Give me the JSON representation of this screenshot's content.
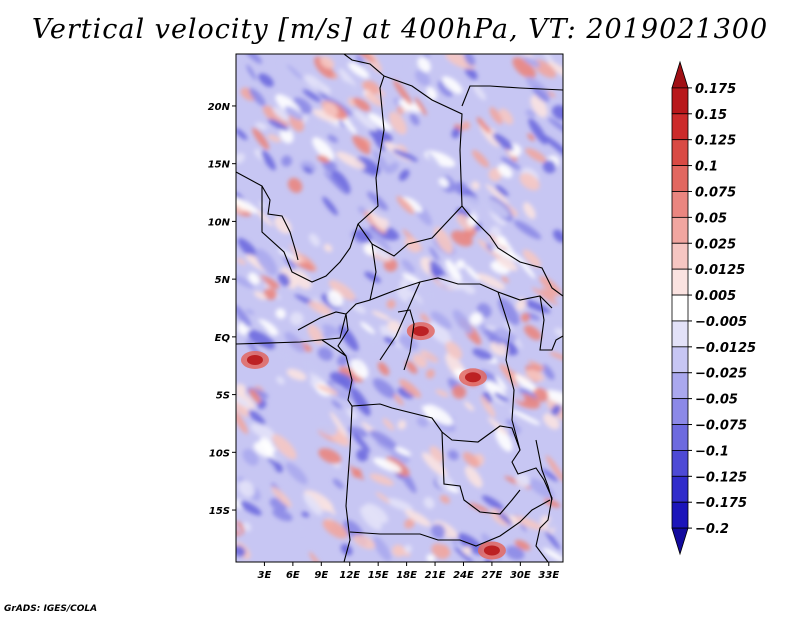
{
  "chart_data": {
    "type": "heatmap",
    "title": "Vertical velocity [m/s] at 400hPa, VT: 2019021300",
    "field": "Vertical velocity",
    "units": "m/s",
    "level": "400hPa",
    "valid_time": "2019021300",
    "x_axis": {
      "kind": "longitude",
      "range": [
        0,
        34.5
      ],
      "ticks": [
        3,
        6,
        9,
        12,
        15,
        18,
        21,
        24,
        27,
        30,
        33
      ],
      "tick_labels": [
        "3E",
        "6E",
        "9E",
        "12E",
        "15E",
        "18E",
        "21E",
        "24E",
        "27E",
        "30E",
        "33E"
      ]
    },
    "y_axis": {
      "kind": "latitude",
      "range": [
        -19.5,
        24.5
      ],
      "ticks": [
        20,
        15,
        10,
        5,
        0,
        -5,
        -10,
        -15
      ],
      "tick_labels": [
        "20N",
        "15N",
        "10N",
        "5N",
        "EQ",
        "5S",
        "10S",
        "15S"
      ]
    },
    "colorbar": {
      "levels": [
        0.175,
        0.15,
        0.125,
        0.1,
        0.075,
        0.05,
        0.025,
        0.0125,
        0.005,
        -0.005,
        -0.0125,
        -0.025,
        -0.05,
        -0.075,
        -0.1,
        -0.125,
        -0.175,
        -0.2
      ],
      "labels": [
        "0.175",
        "0.15",
        "0.125",
        "0.1",
        "0.075",
        "0.05",
        "0.025",
        "0.0125",
        "0.005",
        "−0.005",
        "−0.0125",
        "−0.025",
        "−0.05",
        "−0.075",
        "−0.1",
        "−0.125",
        "−0.175",
        "−0.2"
      ],
      "colors": [
        "#a01015",
        "#b8181b",
        "#cc2b2b",
        "#d94a44",
        "#e26760",
        "#ea8680",
        "#f1a6a0",
        "#f6c6c2",
        "#fbe3e1",
        "#ffffff",
        "#e3e2f8",
        "#c7c6f3",
        "#aaa8ee",
        "#8c89e7",
        "#6d6adf",
        "#4e4ad6",
        "#312ccb",
        "#1c15ba",
        "#120a9e"
      ]
    },
    "notable_features": [
      {
        "label": "strong ascent",
        "lon": 2,
        "lat": -2
      },
      {
        "label": "strong ascent",
        "lon": 19.5,
        "lat": 0.5
      },
      {
        "label": "strong ascent",
        "lon": 25,
        "lat": -3.5
      },
      {
        "label": "strong ascent",
        "lon": 27,
        "lat": -18.5
      }
    ]
  },
  "footer": {
    "credit": "GrADS: IGES/COLA"
  }
}
